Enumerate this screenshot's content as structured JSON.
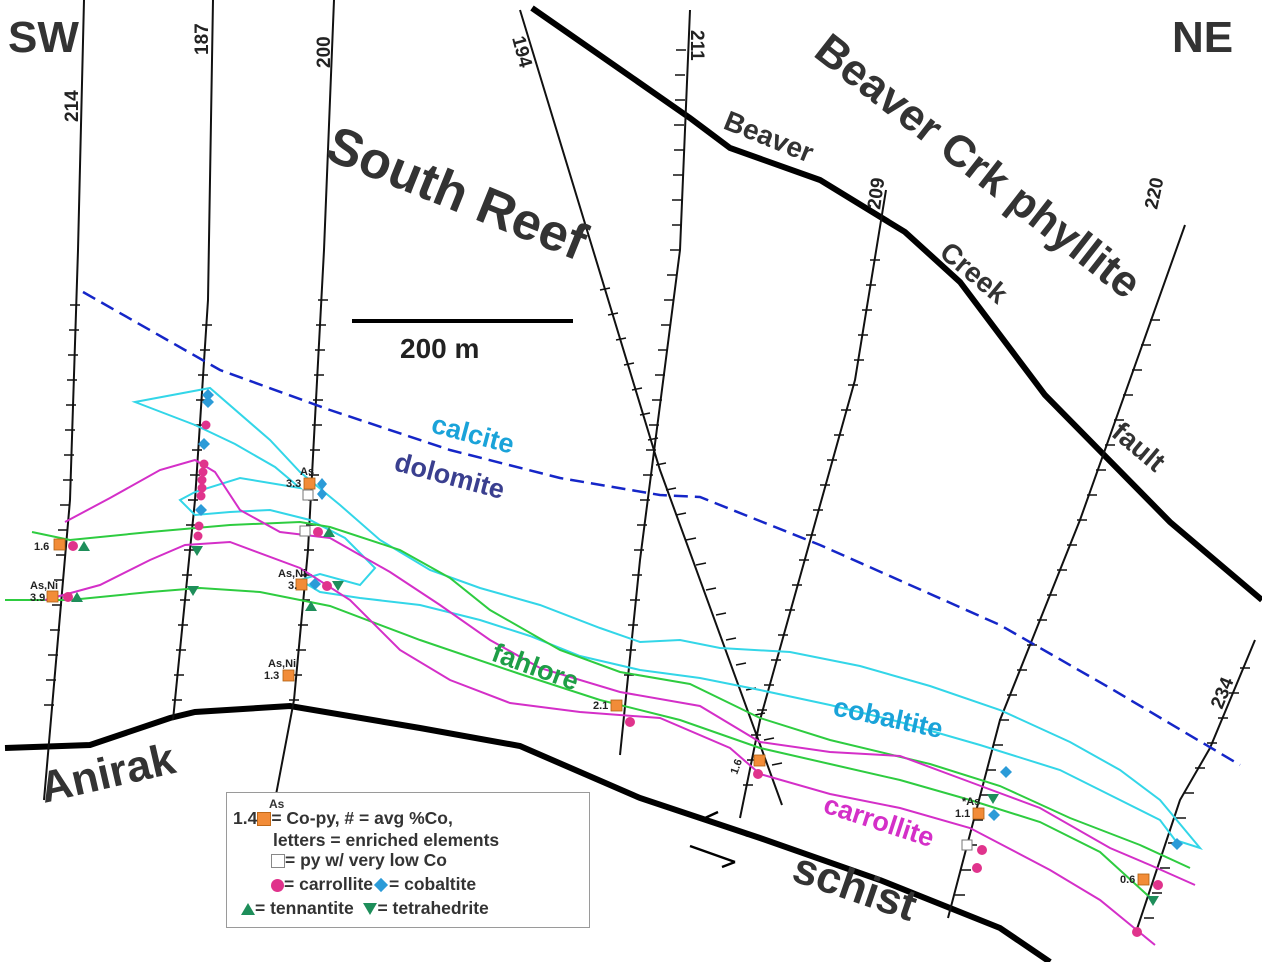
{
  "corners": {
    "left": "SW",
    "right": "NE"
  },
  "units": {
    "south_reef": "South Reef",
    "beaver_crk_phyllite": "Beaver Crk phyllite",
    "anirak": "Anirak",
    "schist": "schist"
  },
  "fault": {
    "word1": "Beaver",
    "word2": "Creek",
    "word3": "fault"
  },
  "scale_bar": {
    "label": "200 m"
  },
  "drillholes": [
    "214",
    "187",
    "200",
    "194",
    "211",
    "209",
    "220",
    "234"
  ],
  "minerals": {
    "calcite": "calcite",
    "dolomite": "dolomite",
    "fahlore": "fahlore",
    "cobaltite": "cobaltite",
    "carrollite": "carrollite"
  },
  "annotations": {
    "a1": "1.6",
    "a2_top": "As,Ni",
    "a2": "3.9",
    "a3_top": "As",
    "a3": "3.3",
    "a4_top": "As,Ni",
    "a4": "3.",
    "a5_top": "As,Ni",
    "a5": "1.3",
    "a6": "2.1",
    "a7": "1.6",
    "a8_top": "*As",
    "a8": "1.1",
    "a9": "0.6"
  },
  "legend": {
    "top_note": "As",
    "num": "1.4",
    "line1": "= Co-py, # = avg %Co,",
    "line2": "letters = enriched elements",
    "line3": "= py w/ very low Co",
    "carrollite": "= carrollite",
    "cobaltite": "= cobaltite",
    "tennantite": "= tennantite",
    "tetrahedrite": "= tetrahedrite"
  },
  "colors": {
    "calcite": "#1AA3D9",
    "dolomite": "#3A3F8F",
    "dashed_contact": "#1526C8",
    "cobaltite_line": "#33D6E8",
    "fahlore_line": "#2ECC40",
    "carrollite_line": "#D42FC8",
    "copy_square": "#F28C38",
    "carrollite_dot": "#E0338C",
    "cobaltite_diamond": "#2B9BD8",
    "fahlore_triangle": "#1E8E5A"
  }
}
